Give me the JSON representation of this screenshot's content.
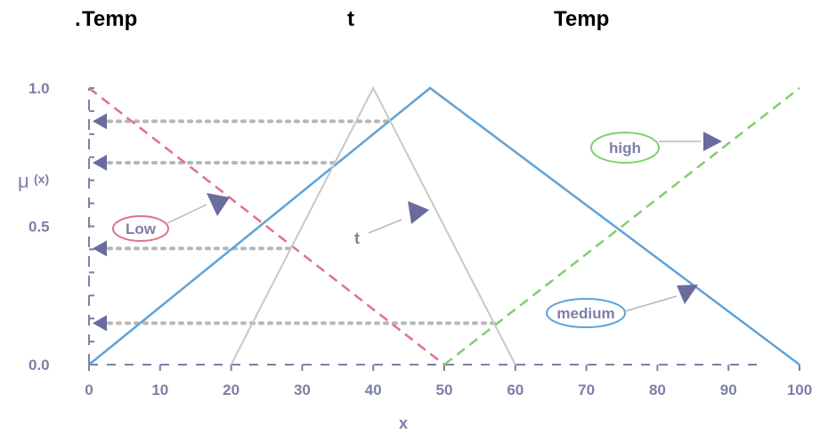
{
  "header": {
    "left_dot": ".",
    "left": "Temp",
    "center": "t",
    "right": "Temp"
  },
  "chart_data": {
    "type": "line",
    "xlabel": "x",
    "ylabel": "μ (x)",
    "ylabel_symbol": "μ",
    "ylabel_arg": "(x)",
    "xlim": [
      0,
      100
    ],
    "ylim": [
      0,
      1
    ],
    "xticks": [
      0,
      10,
      20,
      30,
      40,
      50,
      60,
      70,
      80,
      90,
      100
    ],
    "yticks": [
      {
        "value": 0.0,
        "label": "0.0"
      },
      {
        "value": 0.5,
        "label": "0.5"
      },
      {
        "value": 1.0,
        "label": "1.0"
      }
    ],
    "series": [
      {
        "name": "Low",
        "style": "dashed",
        "color": "#e0708f",
        "x": [
          0,
          50
        ],
        "y": [
          1,
          0
        ]
      },
      {
        "name": "medium",
        "style": "solid",
        "color": "#5ea3d9",
        "x": [
          0,
          48,
          100
        ],
        "y": [
          0,
          1,
          0
        ]
      },
      {
        "name": "high",
        "style": "dashed",
        "color": "#7fcf6f",
        "x": [
          50,
          100
        ],
        "y": [
          0,
          1
        ]
      },
      {
        "name": "t",
        "style": "solid",
        "color": "#c8c8c8",
        "x": [
          20,
          40,
          60
        ],
        "y": [
          0,
          1,
          0
        ]
      }
    ],
    "projection_levels": [
      0.88,
      0.73,
      0.42,
      0.15
    ],
    "callouts": [
      {
        "label": "Low",
        "color": "#e0708f"
      },
      {
        "label": "t",
        "color": "#c8c8c8"
      },
      {
        "label": "high",
        "color": "#7fcf6f"
      },
      {
        "label": "medium",
        "color": "#5ea3d9"
      }
    ],
    "colors": {
      "axis": "#7d7fa6",
      "projection": "#b7b7b7",
      "arrowhead": "#6b6b9e"
    },
    "grid": false,
    "legend": "none"
  }
}
